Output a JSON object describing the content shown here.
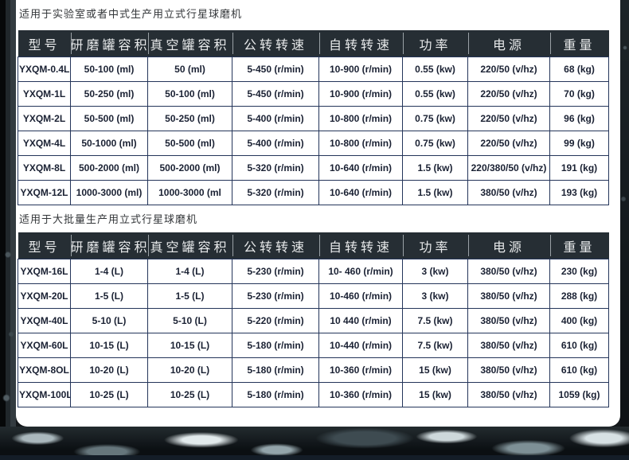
{
  "colors": {
    "header_bg": "#262e34",
    "header_text": "#e7e9ea",
    "table_border": "#24355a",
    "cell_text": "#1a2133",
    "card_bg": "#ffffff",
    "page_bg": "#14181b"
  },
  "section1": {
    "title": "适用于实验室或者中式生产用立式行星球磨机",
    "table": {
      "headers": [
        "型号",
        "研磨罐容积",
        "真空罐容积",
        "公转转速",
        "自转转速",
        "功率",
        "电源",
        "重量"
      ],
      "rows": [
        [
          "YXQM-0.4L",
          "50-100 (ml)",
          "50 (ml)",
          "5-450 (r/min)",
          "10-900 (r/min)",
          "0.55 (kw)",
          "220/50 (v/hz)",
          "68 (kg)"
        ],
        [
          "YXQM-1L",
          "50-250 (ml)",
          "50-100 (ml)",
          "5-450 (r/min)",
          "10-900 (r/min)",
          "0.55 (kw)",
          "220/50 (v/hz)",
          "70 (kg)"
        ],
        [
          "YXQM-2L",
          "50-500 (ml)",
          "50-250 (ml)",
          "5-400 (r/min)",
          "10-800 (r/min)",
          "0.75 (kw)",
          "220/50 (v/hz)",
          "96 (kg)"
        ],
        [
          "YXQM-4L",
          "50-1000 (ml)",
          "50-500 (ml)",
          "5-400 (r/min)",
          "10-800 (r/min)",
          "0.75 (kw)",
          "220/50 (v/hz)",
          "99 (kg)"
        ],
        [
          "YXQM-8L",
          "500-2000 (ml)",
          "500-2000 (ml)",
          "5-320 (r/min)",
          "10-640 (r/min)",
          "1.5 (kw)",
          "220/380/50 (v/hz)",
          "191 (kg)"
        ],
        [
          "YXQM-12L",
          "1000-3000 (ml)",
          "1000-3000 (ml",
          "5-320 (r/min)",
          "10-640 (r/min)",
          "1.5 (kw)",
          "380/50 (v/hz)",
          "193 (kg)"
        ]
      ]
    }
  },
  "section2": {
    "title": "适用于大批量生产用立式行星球磨机",
    "table": {
      "headers": [
        "型号",
        "研磨罐容积",
        "真空罐容积",
        "公转转速",
        "自转转速",
        "功率",
        "电源",
        "重量"
      ],
      "rows": [
        [
          "YXQM-16L",
          "1-4 (L)",
          "1-4 (L)",
          "5-230 (r/min)",
          "10- 460 (r/min)",
          "3 (kw)",
          "380/50 (v/hz)",
          "230 (kg)"
        ],
        [
          "YXQM-20L",
          "1-5 (L)",
          "1-5 (L)",
          "5-230 (r/min)",
          "10-460 (r/min)",
          "3 (kw)",
          "380/50 (v/hz)",
          "288 (kg)"
        ],
        [
          "YXQM-40L",
          "5-10 (L)",
          "5-10 (L)",
          "5-220 (r/min)",
          "10 440 (r/min)",
          "7.5 (kw)",
          "380/50 (v/hz)",
          "400 (kg)"
        ],
        [
          "YXQM-60L",
          "10-15 (L)",
          "10-15 (L)",
          "5-180 (r/min)",
          "10-440 (r/min)",
          "7.5 (kw)",
          "380/50 (v/hz)",
          "610 (kg)"
        ],
        [
          "YXQM-8OL",
          "10-20 (L)",
          "10-20 (L)",
          "5-180 (r/min)",
          "10-360 (r/min)",
          "15 (kw)",
          "380/50 (v/hz)",
          "610 (kg)"
        ],
        [
          "YXQM-100L",
          "10-25 (L)",
          "10-25 (L)",
          "5-180 (r/min)",
          "10-360 (r/min)",
          "15 (kw)",
          "380/50 (v/hz)",
          "1059 (kg)"
        ]
      ]
    }
  }
}
